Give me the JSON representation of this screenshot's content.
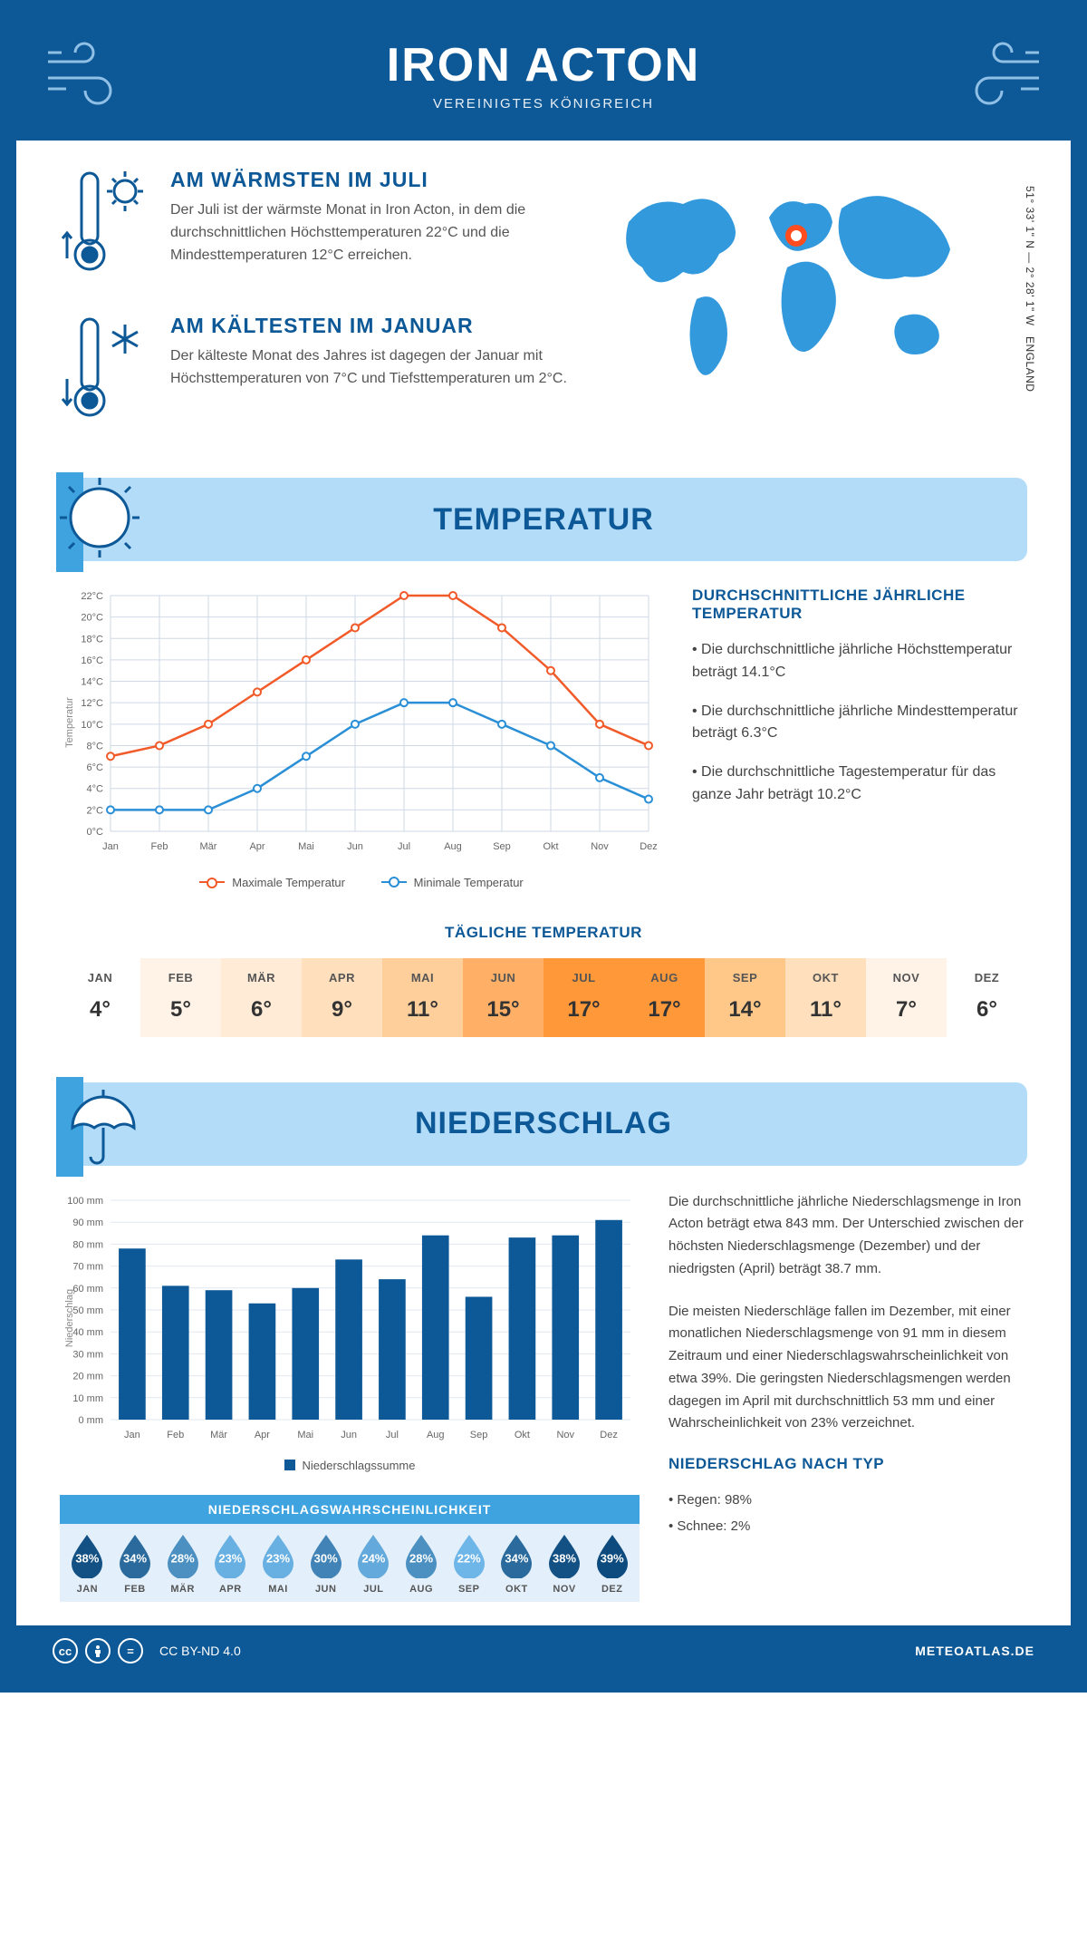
{
  "header": {
    "title": "IRON ACTON",
    "subtitle": "VEREINIGTES KÖNIGREICH"
  },
  "coords": {
    "line1": "51° 33' 1\" N — 2° 28' 1\" W",
    "line2": "ENGLAND"
  },
  "facts": {
    "warm": {
      "title": "AM WÄRMSTEN IM JULI",
      "text": "Der Juli ist der wärmste Monat in Iron Acton, in dem die durchschnittlichen Höchsttemperaturen 22°C und die Mindesttemperaturen 12°C erreichen."
    },
    "cold": {
      "title": "AM KÄLTESTEN IM JANUAR",
      "text": "Der kälteste Monat des Jahres ist dagegen der Januar mit Höchsttemperaturen von 7°C und Tiefsttemperaturen um 2°C."
    }
  },
  "sections": {
    "temperature": "TEMPERATUR",
    "precipitation": "NIEDERSCHLAG"
  },
  "temp_chart": {
    "type": "line",
    "months": [
      "Jan",
      "Feb",
      "Mär",
      "Apr",
      "Mai",
      "Jun",
      "Jul",
      "Aug",
      "Sep",
      "Okt",
      "Nov",
      "Dez"
    ],
    "max_series": [
      7,
      8,
      10,
      13,
      16,
      19,
      22,
      22,
      19,
      15,
      10,
      8
    ],
    "min_series": [
      2,
      2,
      2,
      4,
      7,
      10,
      12,
      12,
      10,
      8,
      5,
      3
    ],
    "max_color": "#f15a29",
    "min_color": "#2a8fd6",
    "grid_color": "#cfd9e6",
    "ylabel": "Temperatur",
    "ylim": [
      0,
      22
    ],
    "ytick_step": 2,
    "ytick_suffix": "°C",
    "legend_max": "Maximale Temperatur",
    "legend_min": "Minimale Temperatur"
  },
  "temp_info": {
    "title": "DURCHSCHNITTLICHE JÄHRLICHE TEMPERATUR",
    "bullets": [
      "• Die durchschnittliche jährliche Höchsttemperatur beträgt 14.1°C",
      "• Die durchschnittliche jährliche Mindesttemperatur beträgt 6.3°C",
      "• Die durchschnittliche Tagestemperatur für das ganze Jahr beträgt 10.2°C"
    ]
  },
  "daily": {
    "title": "TÄGLICHE TEMPERATUR",
    "months": [
      "JAN",
      "FEB",
      "MÄR",
      "APR",
      "MAI",
      "JUN",
      "JUL",
      "AUG",
      "SEP",
      "OKT",
      "NOV",
      "DEZ"
    ],
    "values": [
      "4°",
      "5°",
      "6°",
      "9°",
      "11°",
      "15°",
      "17°",
      "17°",
      "14°",
      "11°",
      "7°",
      "6°"
    ],
    "colors": [
      "#ffffff",
      "#fff3e8",
      "#ffebd6",
      "#ffdfbc",
      "#ffcf9b",
      "#ffb066",
      "#ff9838",
      "#ff9838",
      "#ffc788",
      "#ffdfbc",
      "#fff3e8",
      "#ffffff"
    ]
  },
  "precip_chart": {
    "type": "bar",
    "months": [
      "Jan",
      "Feb",
      "Mär",
      "Apr",
      "Mai",
      "Jun",
      "Jul",
      "Aug",
      "Sep",
      "Okt",
      "Nov",
      "Dez"
    ],
    "values": [
      78,
      61,
      59,
      53,
      60,
      73,
      64,
      84,
      56,
      83,
      84,
      91
    ],
    "bar_color": "#0d5896",
    "grid_color": "#e2e8f0",
    "ylabel": "Niederschlag",
    "ylim": [
      0,
      100
    ],
    "ytick_step": 10,
    "ytick_suffix": " mm",
    "legend": "Niederschlagssumme"
  },
  "precip_text": {
    "p1": "Die durchschnittliche jährliche Niederschlagsmenge in Iron Acton beträgt etwa 843 mm. Der Unterschied zwischen der höchsten Niederschlagsmenge (Dezember) und der niedrigsten (April) beträgt 38.7 mm.",
    "p2": "Die meisten Niederschläge fallen im Dezember, mit einer monatlichen Niederschlagsmenge von 91 mm in diesem Zeitraum und einer Niederschlagswahrscheinlichkeit von etwa 39%. Die geringsten Niederschlagsmengen werden dagegen im April mit durchschnittlich 53 mm und einer Wahrscheinlichkeit von 23% verzeichnet.",
    "type_title": "NIEDERSCHLAG NACH TYP",
    "type1": "• Regen: 98%",
    "type2": "• Schnee: 2%"
  },
  "prob": {
    "title": "NIEDERSCHLAGSWAHRSCHEINLICHKEIT",
    "months": [
      "JAN",
      "FEB",
      "MÄR",
      "APR",
      "MAI",
      "JUN",
      "JUL",
      "AUG",
      "SEP",
      "OKT",
      "NOV",
      "DEZ"
    ],
    "pct": [
      "38%",
      "34%",
      "28%",
      "23%",
      "23%",
      "30%",
      "24%",
      "28%",
      "22%",
      "34%",
      "38%",
      "39%"
    ],
    "values": [
      38,
      34,
      28,
      23,
      23,
      30,
      24,
      28,
      22,
      34,
      38,
      39
    ],
    "color_scale": {
      "min": "#6fb6e8",
      "max": "#0d4a7d"
    }
  },
  "footer": {
    "license": "CC BY-ND 4.0",
    "brand": "METEOATLAS.DE"
  }
}
